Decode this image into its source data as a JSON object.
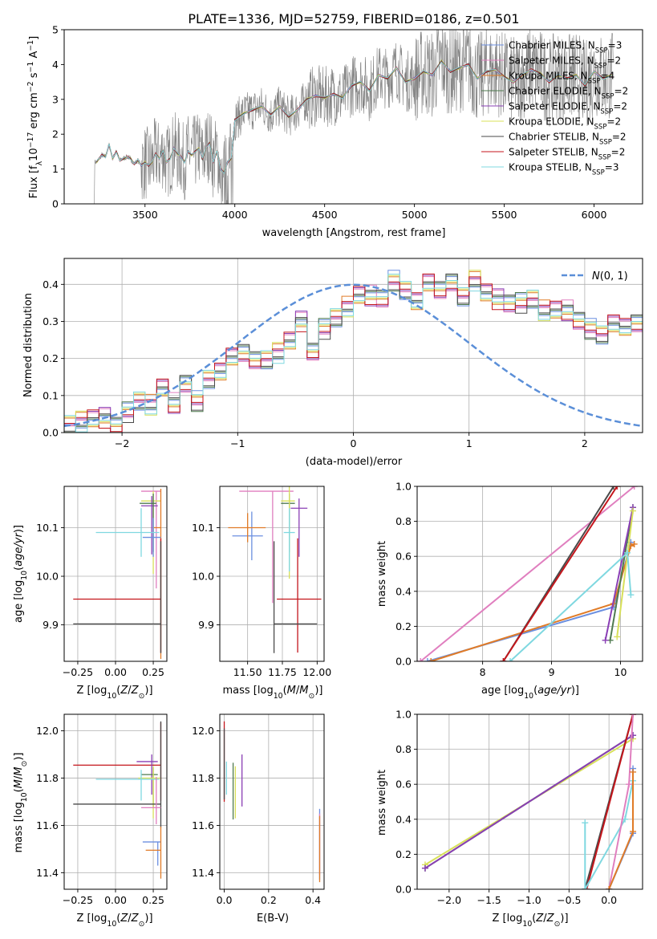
{
  "figure": {
    "title": "PLATE=1336, MJD=52759, FIBERID=0186, z=0.501"
  },
  "colors": {
    "Chabrier MILES": "#6b8fe0",
    "Salpeter MILES": "#e07fbf",
    "Kroupa MILES": "#e07b27",
    "Chabrier ELODIE": "#4f7a4f",
    "Salpeter ELODIE": "#8a3fb5",
    "Kroupa ELODIE": "#d8e05a",
    "Chabrier STELIB": "#4a4a4a",
    "Salpeter STELIB": "#c4161c",
    "Kroupa STELIB": "#7fd8e0",
    "data": "#808080",
    "gauss": "#5b8fd8"
  },
  "chart_data": [
    {
      "id": "spectrum",
      "type": "line",
      "xlabel": "wavelength [Angstrom, rest frame]",
      "ylabel": "Flux [f_λ 10^-17 erg cm^-2 s^-1 A^-1]",
      "xlim": [
        3050,
        6270
      ],
      "ylim": [
        0,
        5
      ],
      "xticks": [
        3500,
        4000,
        4500,
        5000,
        5500,
        6000
      ],
      "yticks": [
        0,
        1,
        2,
        3,
        4,
        5
      ],
      "legend_position": "top-right",
      "legend": [
        {
          "name": "Chabrier MILES",
          "nssp": "3"
        },
        {
          "name": "Salpeter MILES",
          "nssp": "2"
        },
        {
          "name": "Kroupa MILES",
          "nssp": "4"
        },
        {
          "name": "Chabrier ELODIE",
          "nssp": "2"
        },
        {
          "name": "Salpeter ELODIE",
          "nssp": "2"
        },
        {
          "name": "Kroupa ELODIE",
          "nssp": "2"
        },
        {
          "name": "Chabrier STELIB",
          "nssp": "2"
        },
        {
          "name": "Salpeter STELIB",
          "nssp": "2"
        },
        {
          "name": "Kroupa STELIB",
          "nssp": "3"
        }
      ],
      "model_x": [
        3230,
        3260,
        3280,
        3300,
        3320,
        3340,
        3360,
        3380,
        3400,
        3420,
        3440,
        3460,
        3480,
        3500,
        3520,
        3540,
        3560,
        3580,
        3600,
        3620,
        3640,
        3660,
        3680,
        3700,
        3720,
        3740,
        3760,
        3780,
        3800,
        3820,
        3840,
        3860,
        3880,
        3900,
        3920,
        3940,
        3960,
        3980,
        4000,
        4050,
        4100,
        4150,
        4200,
        4250,
        4300,
        4350,
        4400,
        4450,
        4500,
        4550,
        4600,
        4650,
        4700,
        4750,
        4800,
        4850,
        4900,
        4950,
        5000,
        5050,
        5100,
        5150,
        5200,
        5250,
        5300,
        5350,
        5400,
        5450,
        5500,
        5550,
        5600,
        5650,
        5700,
        5750,
        5800,
        5850,
        5900,
        5950,
        6000,
        6050,
        6100
      ],
      "model_y": [
        1.2,
        1.4,
        1.35,
        1.7,
        1.3,
        1.5,
        1.25,
        1.3,
        1.35,
        1.3,
        1.15,
        1.25,
        1.1,
        1.2,
        1.1,
        1.2,
        1.45,
        1.3,
        1.5,
        1.2,
        1.3,
        1.6,
        1.45,
        1.35,
        1.2,
        1.5,
        1.4,
        1.5,
        1.6,
        1.3,
        1.6,
        1.75,
        1.2,
        1.5,
        1.0,
        0.9,
        1.2,
        1.3,
        2.4,
        2.6,
        2.7,
        2.8,
        2.55,
        2.8,
        2.5,
        2.7,
        3.0,
        3.1,
        3.05,
        3.15,
        3.05,
        3.4,
        3.5,
        3.25,
        3.7,
        3.6,
        3.9,
        3.5,
        3.6,
        3.8,
        3.7,
        4.1,
        3.8,
        3.9,
        4.0,
        3.6,
        3.8,
        3.85,
        3.65,
        3.5,
        3.7,
        3.85,
        3.75,
        3.5,
        3.7,
        3.6,
        3.7,
        3.4,
        3.8,
        3.6,
        3.7
      ]
    },
    {
      "id": "residuals",
      "type": "step",
      "xlabel": "(data-model)/error",
      "ylabel": "Normed distribution",
      "xlim": [
        -2.5,
        2.5
      ],
      "ylim": [
        0,
        0.47
      ],
      "xticks": [
        -2,
        -1,
        0,
        1,
        2
      ],
      "yticks": [
        0.0,
        0.1,
        0.2,
        0.3,
        0.4
      ],
      "bin_width": 0.1,
      "legend_position": "top-right",
      "gauss_label": "N(0,1)",
      "base_values": [
        0.025,
        0.03,
        0.04,
        0.04,
        0.02,
        0.055,
        0.085,
        0.075,
        0.12,
        0.08,
        0.13,
        0.085,
        0.14,
        0.17,
        0.2,
        0.22,
        0.19,
        0.2,
        0.215,
        0.25,
        0.3,
        0.22,
        0.28,
        0.31,
        0.34,
        0.37,
        0.37,
        0.36,
        0.41,
        0.38,
        0.36,
        0.4,
        0.39,
        0.4,
        0.37,
        0.41,
        0.38,
        0.36,
        0.35,
        0.35,
        0.36,
        0.33,
        0.33,
        0.33,
        0.3,
        0.28,
        0.26,
        0.3,
        0.28,
        0.3,
        0.22,
        0.2,
        0.2,
        0.185,
        0.17,
        0.16,
        0.15,
        0.145,
        0.11,
        0.11,
        0.1,
        0.095,
        0.075,
        0.065,
        0.05,
        0.045,
        0.03,
        0.03,
        0.025,
        0.025
      ]
    },
    {
      "id": "age_vs_Z",
      "type": "errorbar",
      "xlabel": "Z [log10(Z/Z⊙)]",
      "ylabel": "age [log10(age/yr)]",
      "xlim": [
        -0.34,
        0.34
      ],
      "ylim": [
        9.825,
        10.185
      ],
      "xticks": [
        -0.25,
        0.0,
        0.25
      ],
      "yticks": [
        9.9,
        10.0,
        10.1
      ],
      "points": [
        {
          "model": "Salpeter MILES",
          "x": 0.27,
          "xerr": [
            0.1,
            0.03
          ],
          "y": 10.175,
          "yerr": [
            0.2,
            0.0
          ]
        },
        {
          "model": "Kroupa ELODIE",
          "x": 0.25,
          "xerr": [
            0.08,
            0.05
          ],
          "y": 10.155,
          "yerr": [
            0.15,
            0.02
          ]
        },
        {
          "model": "Salpeter ELODIE",
          "x": 0.24,
          "xerr": [
            0.07,
            0.04
          ],
          "y": 10.145,
          "yerr": [
            0.1,
            0.02
          ]
        },
        {
          "model": "Chabrier ELODIE",
          "x": 0.25,
          "xerr": [
            0.09,
            0.02
          ],
          "y": 10.15,
          "yerr": [
            0.1,
            0.02
          ]
        },
        {
          "model": "Kroupa MILES",
          "x": 0.3,
          "xerr": [
            0.05,
            0.0
          ],
          "y": 10.1,
          "yerr": [
            0.27,
            0.08
          ]
        },
        {
          "model": "Chabrier MILES",
          "x": 0.25,
          "xerr": [
            0.07,
            0.05
          ],
          "y": 10.08,
          "yerr": [
            0.04,
            0.04
          ]
        },
        {
          "model": "Kroupa STELIB",
          "x": 0.17,
          "xerr": [
            0.3,
            0.12
          ],
          "y": 10.09,
          "yerr": [
            0.05,
            0.05
          ]
        },
        {
          "model": "Salpeter STELIB",
          "x": 0.3,
          "xerr": [
            0.58,
            0.0
          ],
          "y": 9.953,
          "yerr": [
            0.11,
            0.125
          ]
        },
        {
          "model": "Chabrier STELIB",
          "x": 0.3,
          "xerr": [
            0.58,
            0.0
          ],
          "y": 9.902,
          "yerr": [
            0.06,
            0.17
          ]
        }
      ]
    },
    {
      "id": "age_vs_mass",
      "type": "errorbar",
      "xlabel": "mass [log10(M/M⊙)]",
      "ylabel": "",
      "xlim": [
        11.3,
        12.05
      ],
      "ylim": [
        9.825,
        10.185
      ],
      "xticks": [
        11.5,
        11.75,
        12.0
      ],
      "yticks": [
        9.9,
        10.0,
        10.1
      ],
      "points": [
        {
          "model": "Salpeter MILES",
          "x": 11.68,
          "xerr": [
            0.24,
            0.15
          ],
          "y": 10.175,
          "yerr": [
            0.23,
            0.0
          ]
        },
        {
          "model": "Chabrier MILES",
          "x": 11.53,
          "xerr": [
            0.14,
            0.08
          ],
          "y": 10.083,
          "yerr": [
            0.05,
            0.05
          ]
        },
        {
          "model": "Kroupa MILES",
          "x": 11.5,
          "xerr": [
            0.14,
            0.13
          ],
          "y": 10.1,
          "yerr": [
            0.03,
            0.03
          ]
        },
        {
          "model": "Chabrier ELODIE",
          "x": 11.8,
          "xerr": [
            0.06,
            0.04
          ],
          "y": 10.15,
          "yerr": [
            0.1,
            0.02
          ]
        },
        {
          "model": "Kroupa ELODIE",
          "x": 11.8,
          "xerr": [
            0.06,
            0.04
          ],
          "y": 10.155,
          "yerr": [
            0.16,
            0.03
          ]
        },
        {
          "model": "Salpeter ELODIE",
          "x": 11.87,
          "xerr": [
            0.06,
            0.06
          ],
          "y": 10.14,
          "yerr": [
            0.1,
            0.02
          ]
        },
        {
          "model": "Kroupa STELIB",
          "x": 11.8,
          "xerr": [
            0.04,
            0.04
          ],
          "y": 10.09,
          "yerr": [
            0.08,
            0.05
          ]
        },
        {
          "model": "Salpeter STELIB",
          "x": 11.86,
          "xerr": [
            0.15,
            0.17
          ],
          "y": 9.953,
          "yerr": [
            0.11,
            0.125
          ]
        },
        {
          "model": "Chabrier STELIB",
          "x": 11.69,
          "xerr": [
            0.0,
            0.31
          ],
          "y": 9.902,
          "yerr": [
            0.06,
            0.17
          ]
        }
      ]
    },
    {
      "id": "weight_vs_age",
      "type": "line",
      "xlabel": "age [log10(age/yr)]",
      "ylabel": "mass weight",
      "xlim": [
        7.05,
        10.32
      ],
      "ylim": [
        0,
        1.0
      ],
      "xticks": [
        8,
        9,
        10
      ],
      "yticks": [
        0.0,
        0.2,
        0.4,
        0.6,
        0.8,
        1.0
      ],
      "series": [
        {
          "model": "Chabrier MILES",
          "x": [
            7.2,
            9.9,
            10.15
          ],
          "y": [
            0.0,
            0.31,
            0.68
          ]
        },
        {
          "model": "Kroupa MILES",
          "x": [
            7.25,
            9.9,
            10.15,
            10.2
          ],
          "y": [
            0.0,
            0.33,
            0.66,
            0.67
          ]
        },
        {
          "model": "Salpeter MILES",
          "x": [
            7.1,
            10.2
          ],
          "y": [
            0.0,
            1.0
          ]
        },
        {
          "model": "Chabrier ELODIE",
          "x": [
            9.85,
            10.18
          ],
          "y": [
            0.12,
            0.88
          ]
        },
        {
          "model": "Salpeter ELODIE",
          "x": [
            9.78,
            10.18
          ],
          "y": [
            0.12,
            0.88
          ]
        },
        {
          "model": "Kroupa ELODIE",
          "x": [
            9.95,
            10.18
          ],
          "y": [
            0.14,
            0.86
          ]
        },
        {
          "model": "Chabrier STELIB",
          "x": [
            8.3,
            9.9
          ],
          "y": [
            0.0,
            1.0
          ]
        },
        {
          "model": "Salpeter STELIB",
          "x": [
            8.3,
            9.95
          ],
          "y": [
            0.0,
            1.0
          ]
        },
        {
          "model": "Kroupa STELIB",
          "x": [
            8.4,
            10.1,
            10.15
          ],
          "y": [
            0.0,
            0.62,
            0.38
          ]
        }
      ]
    },
    {
      "id": "mass_vs_Z",
      "type": "errorbar",
      "xlabel": "Z [log10(Z/Z⊙)]",
      "ylabel": "mass [log10(M/M⊙)]",
      "xlim": [
        -0.34,
        0.34
      ],
      "ylim": [
        11.33,
        12.07
      ],
      "xticks": [
        -0.25,
        0.0,
        0.25
      ],
      "yticks": [
        11.4,
        11.6,
        11.8,
        12.0
      ],
      "points": [
        {
          "model": "Salpeter STELIB",
          "x": 0.3,
          "xerr": [
            0.58,
            0.0
          ],
          "y": 11.855,
          "yerr": [
            0.15,
            0.18
          ]
        },
        {
          "model": "Salpeter ELODIE",
          "x": 0.24,
          "xerr": [
            0.1,
            0.04
          ],
          "y": 11.87,
          "yerr": [
            0.14,
            0.03
          ]
        },
        {
          "model": "Chabrier ELODIE",
          "x": 0.25,
          "xerr": [
            0.08,
            0.03
          ],
          "y": 11.815,
          "yerr": [
            0.14,
            0.03
          ]
        },
        {
          "model": "Kroupa ELODIE",
          "x": 0.25,
          "xerr": [
            0.1,
            0.05
          ],
          "y": 11.8,
          "yerr": [
            0.17,
            0.05
          ]
        },
        {
          "model": "Kroupa STELIB",
          "x": 0.17,
          "xerr": [
            0.3,
            0.12
          ],
          "y": 11.795,
          "yerr": [
            0.09,
            0.04
          ]
        },
        {
          "model": "Chabrier STELIB",
          "x": 0.3,
          "xerr": [
            0.58,
            0.0
          ],
          "y": 11.69,
          "yerr": [
            0.1,
            0.35
          ]
        },
        {
          "model": "Salpeter MILES",
          "x": 0.27,
          "xerr": [
            0.1,
            0.03
          ],
          "y": 11.675,
          "yerr": [
            0.07,
            0.13
          ]
        },
        {
          "model": "Chabrier MILES",
          "x": 0.28,
          "xerr": [
            0.1,
            0.02
          ],
          "y": 11.53,
          "yerr": [
            0.1,
            0.0
          ]
        },
        {
          "model": "Kroupa MILES",
          "x": 0.3,
          "xerr": [
            0.1,
            0.0
          ],
          "y": 11.495,
          "yerr": [
            0.12,
            0.1
          ]
        }
      ]
    },
    {
      "id": "mass_vs_ebv",
      "type": "errorbar",
      "xlabel": "E(B-V)",
      "ylabel": "",
      "xlim": [
        -0.02,
        0.45
      ],
      "ylim": [
        11.33,
        12.07
      ],
      "xticks": [
        0.0,
        0.2,
        0.4
      ],
      "yticks": [
        11.4,
        11.6,
        11.8,
        12.0
      ],
      "points": [
        {
          "model": "Salpeter STELIB",
          "x": 0.0,
          "y": 11.87,
          "yerr": [
            0.17,
            0.17
          ]
        },
        {
          "model": "Chabrier STELIB",
          "x": 0.0,
          "y": 11.86,
          "yerr": [
            0.15,
            0.15
          ]
        },
        {
          "model": "Kroupa STELIB",
          "x": 0.01,
          "y": 11.8,
          "yerr": [
            0.07,
            0.07
          ]
        },
        {
          "model": "Chabrier ELODIE",
          "x": 0.04,
          "y": 11.745,
          "yerr": [
            0.12,
            0.12
          ]
        },
        {
          "model": "Kroupa ELODIE",
          "x": 0.05,
          "y": 11.74,
          "yerr": [
            0.11,
            0.11
          ]
        },
        {
          "model": "Salpeter ELODIE",
          "x": 0.08,
          "y": 11.79,
          "yerr": [
            0.11,
            0.11
          ]
        },
        {
          "model": "Chabrier MILES",
          "x": 0.43,
          "y": 11.52,
          "yerr": [
            0.15,
            0.15
          ]
        },
        {
          "model": "Salpeter MILES",
          "x": 0.43,
          "y": 11.52,
          "yerr": [
            0.13,
            0.13
          ]
        },
        {
          "model": "Kroupa MILES",
          "x": 0.43,
          "y": 11.5,
          "yerr": [
            0.14,
            0.14
          ]
        }
      ]
    },
    {
      "id": "weight_vs_Z",
      "type": "line",
      "xlabel": "Z [log10(Z/Z⊙)]",
      "ylabel": "mass weight",
      "xlim": [
        -2.4,
        0.42
      ],
      "ylim": [
        0,
        1.0
      ],
      "xticks": [
        -2.0,
        -1.5,
        -1.0,
        -0.5,
        0.0
      ],
      "yticks": [
        0.0,
        0.2,
        0.4,
        0.6,
        0.8,
        1.0
      ],
      "series": [
        {
          "model": "Kroupa ELODIE",
          "x": [
            -2.3,
            0.3
          ],
          "y": [
            0.14,
            0.86
          ]
        },
        {
          "model": "Chabrier ELODIE",
          "x": [
            -2.3,
            0.3
          ],
          "y": [
            0.12,
            0.88
          ]
        },
        {
          "model": "Salpeter ELODIE",
          "x": [
            -2.3,
            0.3
          ],
          "y": [
            0.12,
            0.88
          ]
        },
        {
          "model": "Chabrier STELIB",
          "x": [
            -0.3,
            0.3
          ],
          "y": [
            0.0,
            1.0
          ]
        },
        {
          "model": "Salpeter STELIB",
          "x": [
            -0.28,
            0.3
          ],
          "y": [
            0.0,
            1.0
          ]
        },
        {
          "model": "Kroupa STELIB",
          "x": [
            -0.3,
            -0.3,
            0.2,
            0.3
          ],
          "y": [
            0.38,
            0.0,
            0.4,
            0.62
          ]
        },
        {
          "model": "Salpeter MILES",
          "x": [
            0.0,
            0.25,
            0.3
          ],
          "y": [
            0.0,
            0.6,
            1.0
          ]
        },
        {
          "model": "Chabrier MILES",
          "x": [
            0.0,
            0.3,
            0.3
          ],
          "y": [
            0.0,
            0.32,
            0.69
          ]
        },
        {
          "model": "Kroupa MILES",
          "x": [
            0.0,
            0.3,
            0.3
          ],
          "y": [
            0.0,
            0.33,
            0.67
          ]
        }
      ]
    }
  ]
}
